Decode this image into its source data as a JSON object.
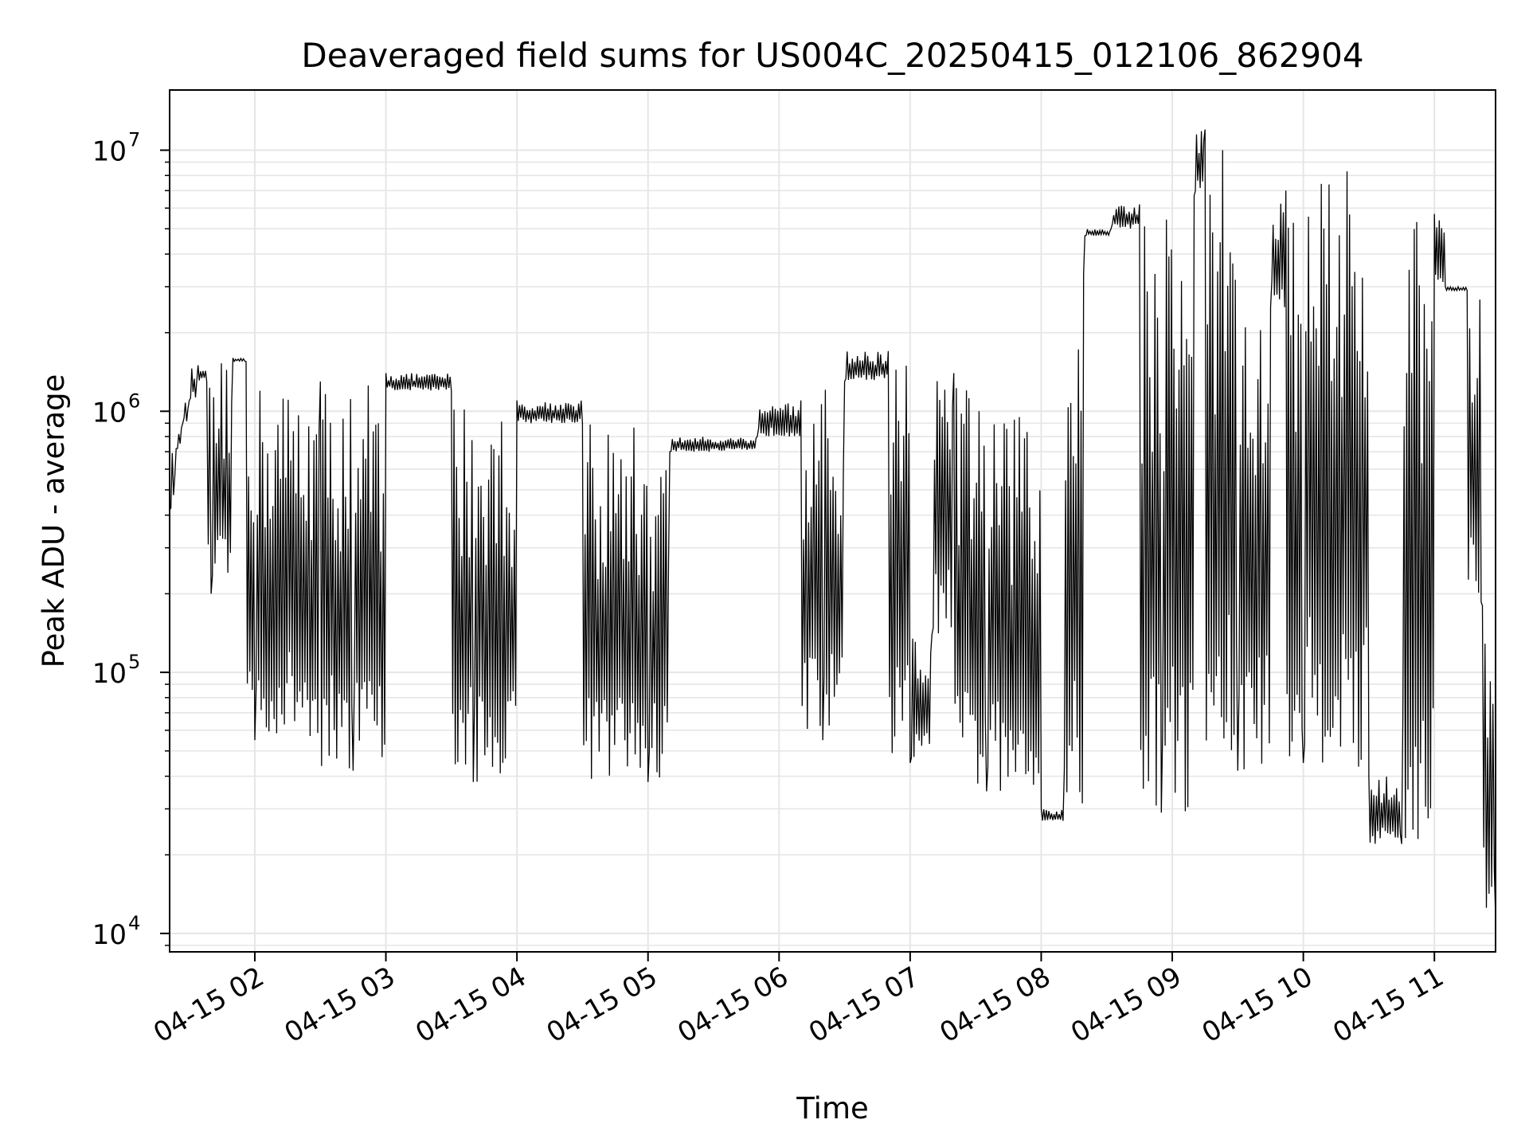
{
  "chart_data": {
    "type": "line",
    "title": "Deaveraged field sums for US004C_20250415_012106_862904",
    "xlabel": "Time",
    "ylabel": "Peak ADU - average",
    "yscale": "log",
    "ylim": [
      8500,
      17000000
    ],
    "xlim": [
      "2025-04-15 01:21",
      "2025-04-15 11:28"
    ],
    "x_ticks": [
      {
        "value": "2025-04-15 02:00",
        "label": "04-15 02"
      },
      {
        "value": "2025-04-15 03:00",
        "label": "04-15 03"
      },
      {
        "value": "2025-04-15 04:00",
        "label": "04-15 04"
      },
      {
        "value": "2025-04-15 05:00",
        "label": "04-15 05"
      },
      {
        "value": "2025-04-15 06:00",
        "label": "04-15 06"
      },
      {
        "value": "2025-04-15 07:00",
        "label": "04-15 07"
      },
      {
        "value": "2025-04-15 08:00",
        "label": "04-15 08"
      },
      {
        "value": "2025-04-15 09:00",
        "label": "04-15 09"
      },
      {
        "value": "2025-04-15 10:00",
        "label": "04-15 10"
      },
      {
        "value": "2025-04-15 11:00",
        "label": "04-15 11"
      }
    ],
    "y_ticks": [
      {
        "value": 10000,
        "base": "10",
        "exp": "4"
      },
      {
        "value": 100000,
        "base": "10",
        "exp": "5"
      },
      {
        "value": 1000000,
        "base": "10",
        "exp": "6"
      },
      {
        "value": 10000000,
        "base": "10",
        "exp": "7"
      }
    ],
    "grid": true,
    "line_color": "#000000",
    "grid_color": "#e6e6e6",
    "series": [
      {
        "points": [
          [
            "2025-04-15 01:21",
            420000
          ],
          [
            "2025-04-15 01:24",
            720000
          ],
          [
            "2025-04-15 01:27",
            900000
          ],
          [
            "2025-04-15 01:30",
            1100000
          ],
          [
            "2025-04-15 01:34",
            1500000
          ],
          [
            "2025-04-15 01:38",
            1300000
          ],
          [
            "2025-04-15 01:40",
            200000
          ],
          [
            "2025-04-15 01:50",
            1600000
          ],
          [
            "2025-04-15 01:56",
            1550000
          ],
          [
            "2025-04-15 02:00",
            55000
          ],
          [
            "2025-04-15 02:30",
            1300000
          ],
          [
            "2025-04-15 02:45",
            42000
          ],
          [
            "2025-04-15 03:00",
            1400000
          ],
          [
            "2025-04-15 03:30",
            1200000
          ],
          [
            "2025-04-15 03:40",
            38000
          ],
          [
            "2025-04-15 04:00",
            1100000
          ],
          [
            "2025-04-15 04:30",
            900000
          ],
          [
            "2025-04-15 05:00",
            38000
          ],
          [
            "2025-04-15 05:10",
            700000
          ],
          [
            "2025-04-15 05:50",
            800000
          ],
          [
            "2025-04-15 06:10",
            1100000
          ],
          [
            "2025-04-15 06:20",
            55000
          ],
          [
            "2025-04-15 06:30",
            1300000
          ],
          [
            "2025-04-15 06:50",
            1700000
          ],
          [
            "2025-04-15 07:00",
            45000
          ],
          [
            "2025-04-15 07:10",
            140000
          ],
          [
            "2025-04-15 07:20",
            1400000
          ],
          [
            "2025-04-15 07:35",
            35000
          ],
          [
            "2025-04-15 07:50",
            950000
          ],
          [
            "2025-04-15 08:00",
            30000
          ],
          [
            "2025-04-15 08:10",
            27000
          ],
          [
            "2025-04-15 08:20",
            4700000
          ],
          [
            "2025-04-15 08:32",
            5000000
          ],
          [
            "2025-04-15 08:45",
            6200000
          ],
          [
            "2025-04-15 08:55",
            29000
          ],
          [
            "2025-04-15 09:10",
            6700000
          ],
          [
            "2025-04-15 09:15",
            12000000
          ],
          [
            "2025-04-15 09:30",
            42000
          ],
          [
            "2025-04-15 09:45",
            2500000
          ],
          [
            "2025-04-15 09:52",
            7000000
          ],
          [
            "2025-04-15 10:00",
            45000
          ],
          [
            "2025-04-15 10:20",
            8300000
          ],
          [
            "2025-04-15 10:30",
            40000
          ],
          [
            "2025-04-15 10:45",
            22000
          ],
          [
            "2025-04-15 11:00",
            5700000
          ],
          [
            "2025-04-15 11:05",
            3000000
          ],
          [
            "2025-04-15 11:15",
            2900000
          ],
          [
            "2025-04-15 11:22",
            180000
          ],
          [
            "2025-04-15 11:28",
            11500
          ]
        ]
      }
    ]
  }
}
